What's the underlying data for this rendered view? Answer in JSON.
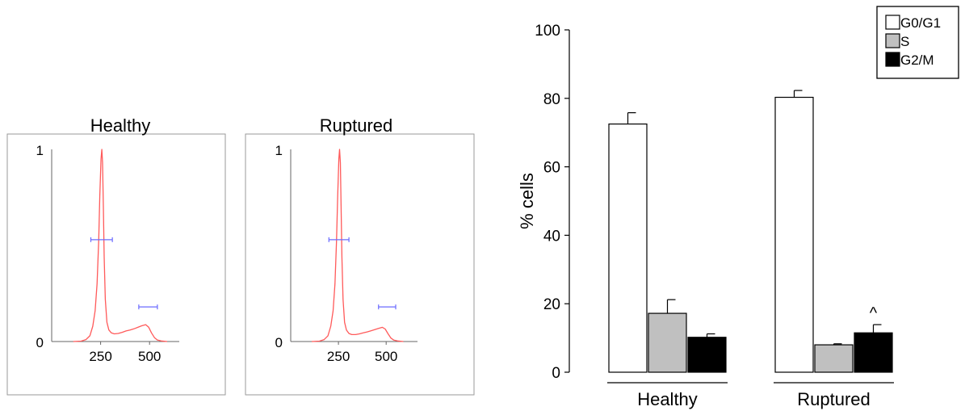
{
  "chart_data": [
    {
      "type": "line",
      "title": "Healthy",
      "xlabel": "",
      "ylabel": "",
      "xticks": [
        "250",
        "500"
      ],
      "yticks": [
        "0",
        "1"
      ],
      "xlim": [
        0,
        650
      ],
      "ylim": [
        0,
        1
      ],
      "series": [
        {
          "color": "#ff5a5a",
          "x": [
            110,
            150,
            175,
            195,
            210,
            222,
            232,
            240,
            246,
            252,
            256,
            260,
            264,
            268,
            274,
            282,
            292,
            305,
            320,
            340,
            360,
            380,
            400,
            420,
            440,
            460,
            480,
            495,
            510,
            525,
            540,
            560,
            590
          ],
          "y": [
            0,
            0.002,
            0.01,
            0.03,
            0.08,
            0.16,
            0.3,
            0.52,
            0.76,
            0.95,
            1.0,
            0.93,
            0.7,
            0.44,
            0.22,
            0.1,
            0.06,
            0.045,
            0.04,
            0.042,
            0.048,
            0.055,
            0.06,
            0.066,
            0.074,
            0.082,
            0.088,
            0.075,
            0.045,
            0.02,
            0.008,
            0.003,
            0
          ]
        }
      ],
      "gates": [
        {
          "color": "#6b6bff",
          "x_start": 200,
          "x_end": 310,
          "y": 0.53
        },
        {
          "color": "#6b6bff",
          "x_start": 445,
          "x_end": 540,
          "y": 0.18
        }
      ]
    },
    {
      "type": "line",
      "title": "Ruptured",
      "xlabel": "",
      "ylabel": "",
      "xticks": [
        "250",
        "500"
      ],
      "yticks": [
        "0",
        "1"
      ],
      "xlim": [
        0,
        650
      ],
      "ylim": [
        0,
        1
      ],
      "series": [
        {
          "color": "#ff5a5a",
          "x": [
            110,
            150,
            175,
            195,
            210,
            222,
            232,
            240,
            246,
            252,
            256,
            260,
            264,
            268,
            274,
            282,
            292,
            305,
            320,
            340,
            360,
            380,
            400,
            420,
            440,
            460,
            480,
            495,
            510,
            525,
            540,
            560,
            590
          ],
          "y": [
            0,
            0.002,
            0.01,
            0.03,
            0.08,
            0.16,
            0.3,
            0.52,
            0.76,
            0.95,
            1.0,
            0.93,
            0.7,
            0.44,
            0.22,
            0.1,
            0.06,
            0.042,
            0.036,
            0.036,
            0.04,
            0.045,
            0.05,
            0.056,
            0.062,
            0.068,
            0.074,
            0.065,
            0.04,
            0.018,
            0.007,
            0.003,
            0
          ]
        }
      ],
      "gates": [
        {
          "color": "#6b6bff",
          "x_start": 200,
          "x_end": 305,
          "y": 0.53
        },
        {
          "color": "#6b6bff",
          "x_start": 460,
          "x_end": 550,
          "y": 0.18
        }
      ]
    },
    {
      "type": "bar",
      "title": "",
      "xlabel": "",
      "ylabel": "% cells",
      "ylim": [
        0,
        100
      ],
      "yticks": [
        0,
        20,
        40,
        60,
        80,
        100
      ],
      "grid": false,
      "legend_position": "top-right",
      "categories": [
        "Healthy",
        "Ruptured"
      ],
      "series": [
        {
          "name": "G0/G1",
          "color": "#ffffff",
          "values": [
            72.5,
            80.3
          ],
          "errors": [
            3.3,
            2.0
          ]
        },
        {
          "name": "S",
          "color": "#c0c0c0",
          "values": [
            17.2,
            8.0
          ],
          "errors": [
            4.0,
            0.3
          ]
        },
        {
          "name": "G2/M",
          "color": "#000000",
          "values": [
            10.2,
            11.5
          ],
          "errors": [
            1.0,
            2.4
          ]
        }
      ],
      "annotations": [
        {
          "text": "^",
          "category": "Ruptured",
          "series": "G2/M"
        }
      ]
    }
  ]
}
